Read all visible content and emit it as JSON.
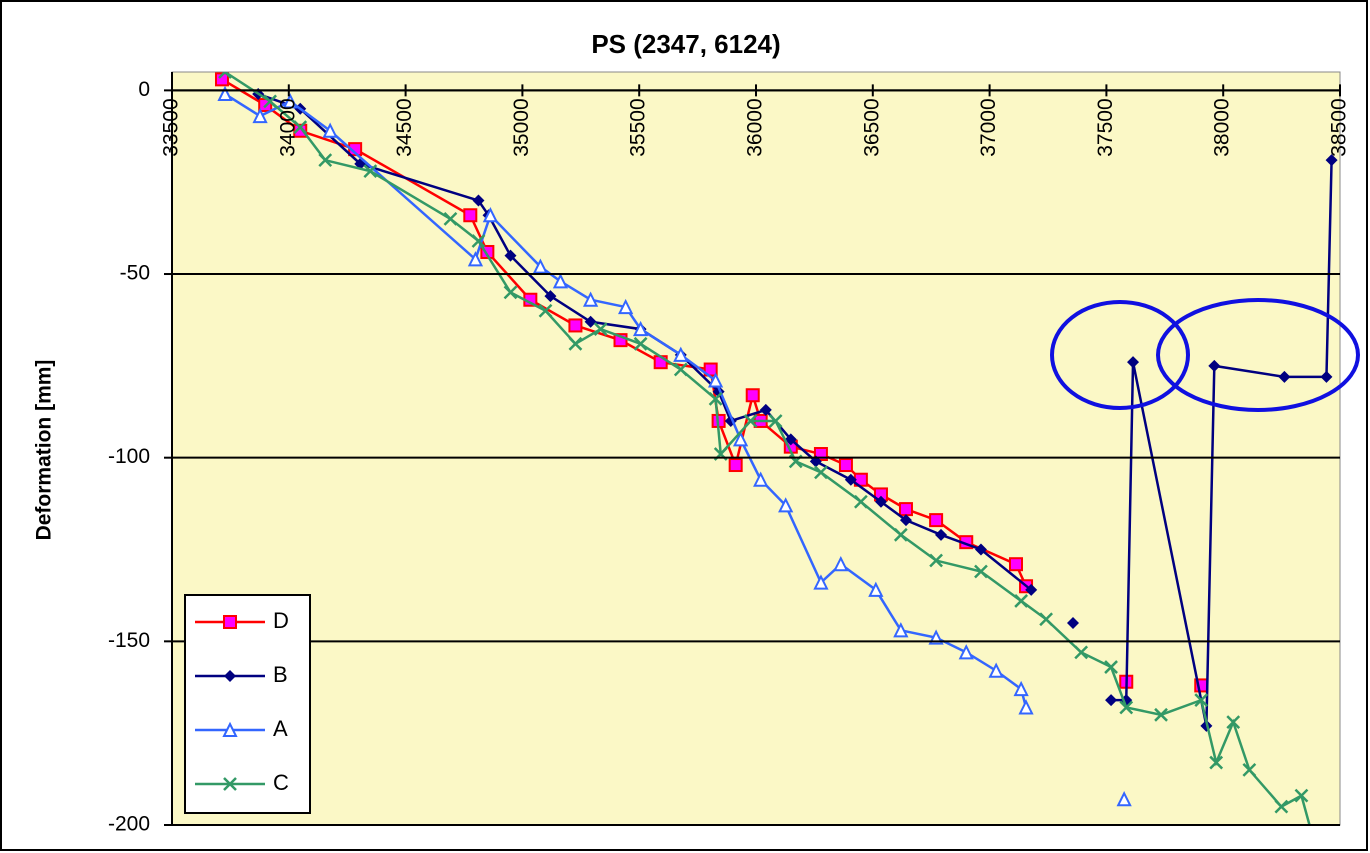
{
  "chart_data": {
    "type": "line",
    "title": "PS (2347, 6124)",
    "y_label": "Deformation  [mm]",
    "xlim": [
      33500,
      38500
    ],
    "xticks": [
      33500,
      34000,
      34500,
      35000,
      35500,
      36000,
      36500,
      37000,
      37500,
      38000,
      38500
    ],
    "ylim": [
      -200,
      5
    ],
    "yticks": [
      0,
      -50,
      -100,
      -150,
      -200
    ],
    "grid": true,
    "legend": "lower left",
    "series": [
      {
        "name": "D",
        "color": "#ff0000",
        "marker_color": "#ff00ff",
        "marker": "square",
        "x": [
          33714,
          33899,
          34049,
          34284,
          34777,
          34850,
          35034,
          35227,
          35420,
          35592,
          35806,
          35840,
          35913,
          35986,
          36020,
          36149,
          36278,
          36385,
          36449,
          36535,
          36642,
          36771,
          36900,
          37113,
          37156,
          null,
          37585,
          null,
          37906
        ],
        "values": [
          3,
          -4,
          -11,
          -16,
          -34,
          -44,
          -57,
          -64,
          -68,
          -74,
          -76,
          -90,
          -102,
          -83,
          -90,
          -97,
          -99,
          -102,
          -106,
          -110,
          -114,
          -117,
          -123,
          -129,
          -135,
          null,
          -161,
          null,
          -162
        ]
      },
      {
        "name": "B",
        "color": "#000080",
        "marker_color": "#000080",
        "marker": "diamond",
        "x": [
          33869,
          34049,
          34306,
          34812,
          34855,
          34949,
          35120,
          35292,
          35506,
          35678,
          35840,
          35892,
          36042,
          36149,
          36256,
          36406,
          36535,
          36642,
          36792,
          36963,
          37178,
          null,
          37357,
          null,
          37520,
          37585,
          37614,
          37928,
          37962,
          38262,
          38442,
          38464
        ],
        "values": [
          -1,
          -5,
          -20,
          -30,
          -34,
          -45,
          -56,
          -63,
          -65,
          -72,
          -82,
          -90,
          -87,
          -95,
          -101,
          -106,
          -112,
          -117,
          -121,
          -125,
          -136,
          null,
          -145,
          null,
          -166,
          -166,
          -74,
          -173,
          -75,
          -78,
          -78,
          -19
        ]
      },
      {
        "name": "A",
        "color": "#3366ff",
        "marker_color": "#3366ff",
        "marker": "triangle",
        "x": [
          33727,
          33877,
          34006,
          34177,
          34799,
          34863,
          35077,
          35163,
          35292,
          35442,
          35506,
          35678,
          35827,
          35934,
          36020,
          36127,
          36278,
          36363,
          36513,
          36620,
          36771,
          36900,
          37028,
          37135,
          37156,
          null,
          37576
        ],
        "values": [
          -1,
          -7,
          -3,
          -11,
          -46,
          -34,
          -48,
          -52,
          -57,
          -59,
          -65,
          -72,
          -79,
          -95,
          -106,
          -113,
          -134,
          -129,
          -136,
          -147,
          -149,
          -153,
          -158,
          -163,
          -168,
          null,
          -193
        ]
      },
      {
        "name": "C",
        "color": "#339966",
        "marker_color": "#339966",
        "marker": "x",
        "x": [
          33727,
          33920,
          34049,
          34156,
          34349,
          34692,
          34812,
          34949,
          35099,
          35227,
          35335,
          35506,
          35678,
          35827,
          35849,
          35977,
          36084,
          36170,
          36278,
          36449,
          36620,
          36771,
          36963,
          37135,
          37242,
          37392,
          37520,
          37585,
          37734,
          37906,
          37970,
          38043,
          38112,
          38249,
          38335,
          38378
        ],
        "values": [
          5,
          -3,
          -10,
          -19,
          -22,
          -35,
          -41,
          -55,
          -60,
          -69,
          -65,
          -69,
          -76,
          -84,
          -99,
          -90,
          -90,
          -101,
          -104,
          -112,
          -121,
          -128,
          -131,
          -139,
          -144,
          -153,
          -157,
          -168,
          -170,
          -166,
          -183,
          -172,
          -185,
          -195,
          -192,
          -202
        ]
      }
    ]
  }
}
